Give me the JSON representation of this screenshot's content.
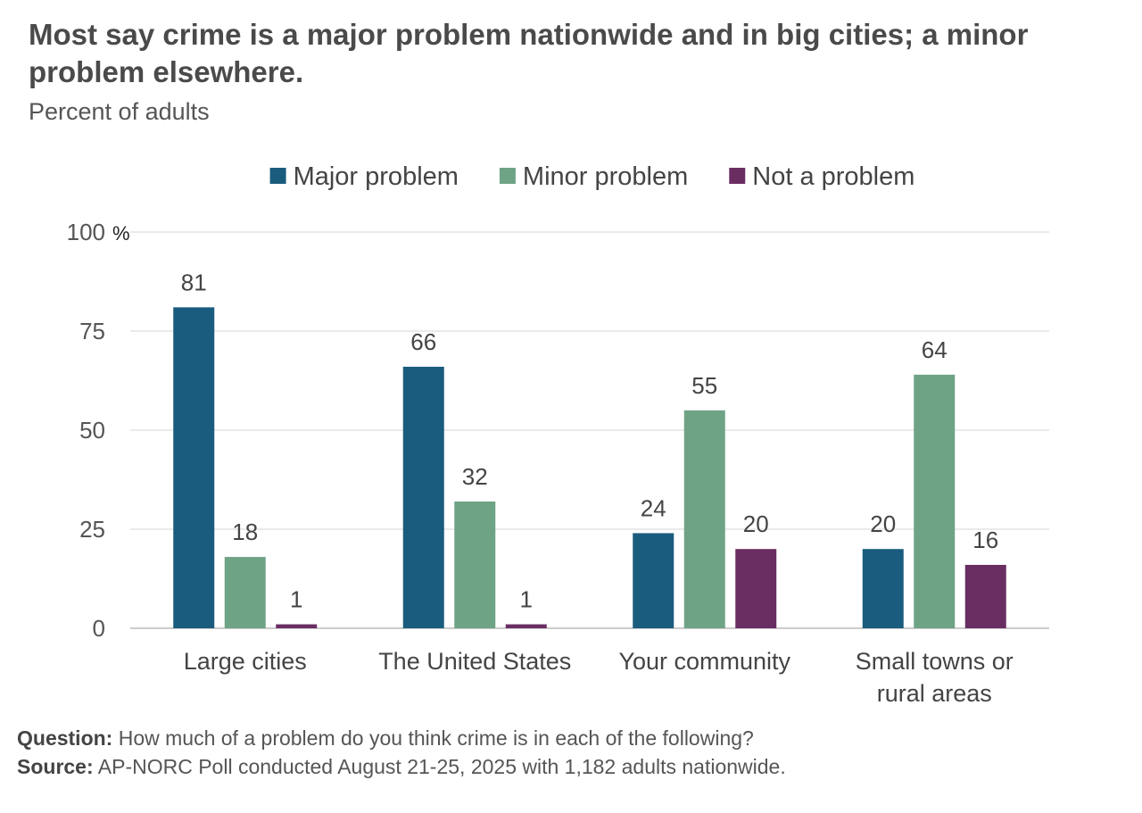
{
  "chart_data": {
    "type": "bar",
    "title": "Most say crime is a major problem nationwide and in big cities; a minor problem elsewhere.",
    "subtitle": "Percent of adults",
    "categories": [
      "Large cities",
      "The United States",
      "Your community",
      "Small towns or rural areas"
    ],
    "category_lines": [
      [
        "Large cities"
      ],
      [
        "The United States"
      ],
      [
        "Your community"
      ],
      [
        "Small towns or",
        "rural areas"
      ]
    ],
    "series": [
      {
        "name": "Major problem",
        "color": "#1a5c7d",
        "values": [
          81,
          66,
          24,
          20
        ]
      },
      {
        "name": "Minor problem",
        "color": "#6fa386",
        "values": [
          18,
          32,
          55,
          64
        ]
      },
      {
        "name": "Not a problem",
        "color": "#6a2d62",
        "values": [
          1,
          1,
          20,
          16
        ]
      }
    ],
    "ylim": [
      0,
      100
    ],
    "yticks": [
      0,
      25,
      50,
      75,
      100
    ],
    "ytick_labels": [
      "0",
      "25",
      "50",
      "75",
      "100"
    ],
    "y_unit": "%",
    "legend_position": "top-center",
    "grid": true
  },
  "footer": {
    "question_label": "Question:",
    "question_text": " How much of a problem do you think crime is in each of the following?",
    "source_label": "Source:",
    "source_text": " AP-NORC Poll conducted August 21-25, 2025 with 1,182 adults nationwide."
  }
}
